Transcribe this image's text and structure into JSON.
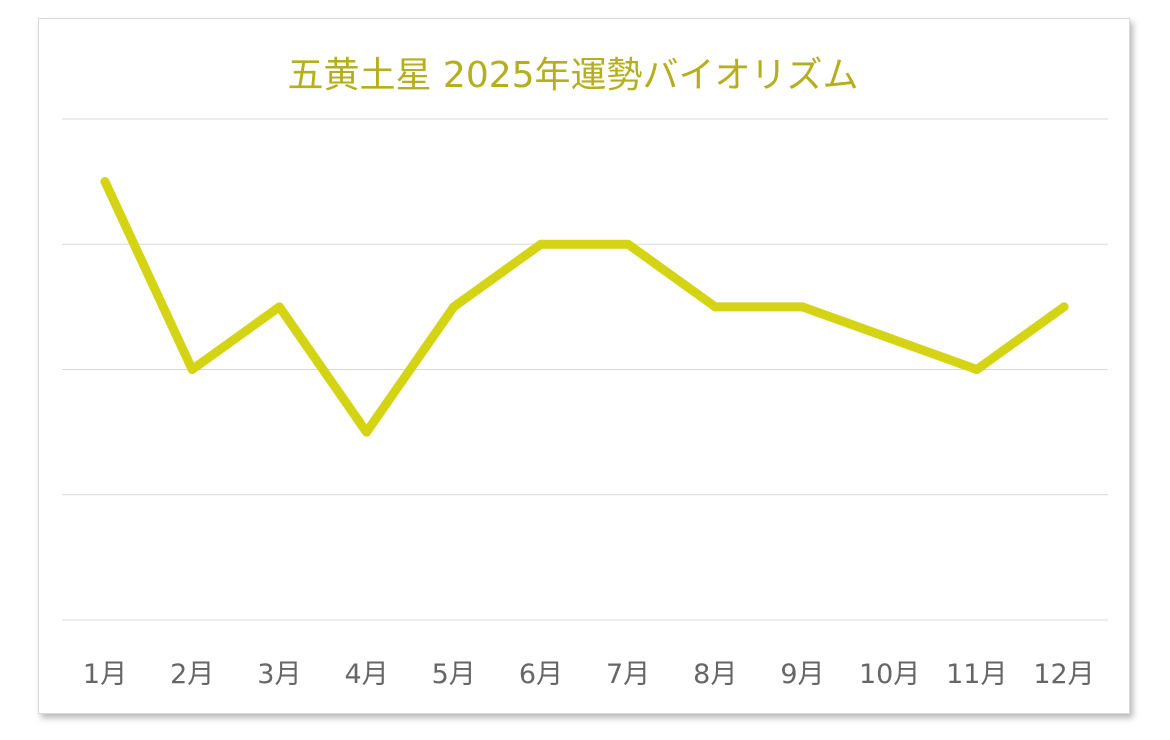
{
  "chart_data": {
    "type": "line",
    "title": "五黄土星  2025年運勢バイオリズム",
    "xlabel": "",
    "ylabel": "",
    "categories": [
      "1月",
      "2月",
      "3月",
      "4月",
      "5月",
      "6月",
      "7月",
      "8月",
      "9月",
      "10月",
      "11月",
      "12月"
    ],
    "series": [
      {
        "name": "",
        "values": [
          3.5,
          2,
          2.5,
          1.5,
          2.5,
          3,
          3,
          2.5,
          2.5,
          2.25,
          2,
          2.5
        ]
      }
    ],
    "ylim": [
      0,
      4
    ],
    "yticks": [
      0,
      1,
      2,
      3,
      4
    ],
    "y_tick_labels_visible": false,
    "grid": true,
    "legend": "none",
    "colors": {
      "line": "#d4d414",
      "title": "#b5ae1d",
      "grid": "#d9d9d9",
      "tick_label": "#666666"
    }
  }
}
